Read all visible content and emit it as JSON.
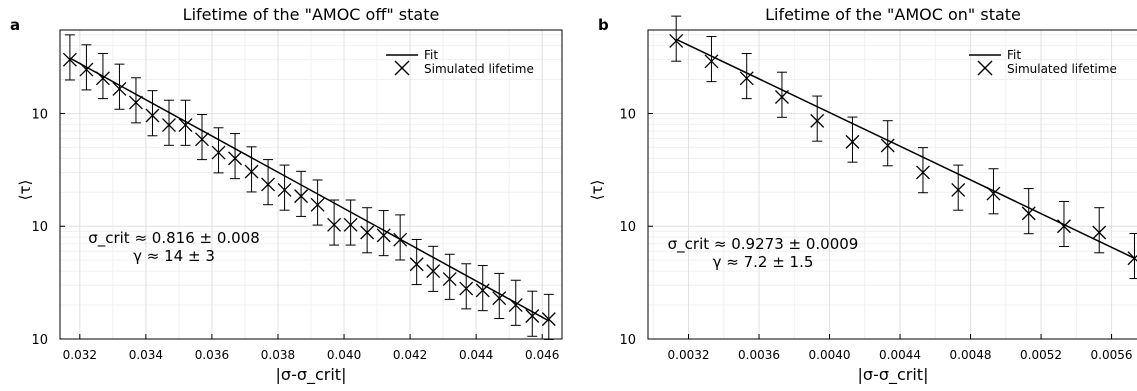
{
  "chart_data": [
    {
      "panel_label": "a",
      "type": "scatter",
      "title": "Lifetime of the \"AMOC off\" state",
      "xlabel": "|σ-σ_crit|",
      "ylabel": "⟨τ⟩",
      "y_scale": "log",
      "xlim": [
        0.0314,
        0.0466
      ],
      "ylim": [
        10,
        5500
      ],
      "x_ticks": [
        0.032,
        0.034,
        0.036,
        0.038,
        0.04,
        0.042,
        0.044,
        0.046
      ],
      "x_tick_labels": [
        "0.032",
        "0.034",
        "0.036",
        "0.038",
        "0.040",
        "0.042",
        "0.044",
        "0.046"
      ],
      "y_ticks": [
        10,
        100,
        1000
      ],
      "y_tick_labels": [
        [
          "10",
          "1"
        ],
        [
          "10",
          "2"
        ],
        [
          "10",
          "3"
        ]
      ],
      "grid": true,
      "legend": {
        "position": "top-right",
        "entries": [
          "Fit",
          "Simulated lifetime"
        ]
      },
      "annotation": [
        "σ_crit ≈ 0.816 ± 0.008",
        "γ ≈ 14 ± 3"
      ],
      "fit": {
        "x": [
          0.0317,
          0.0462
        ],
        "y": [
          3100,
          14.5
        ]
      },
      "series": [
        {
          "name": "Simulated lifetime",
          "x": [
            0.0317,
            0.0322,
            0.0327,
            0.0332,
            0.0337,
            0.0342,
            0.0347,
            0.0352,
            0.0357,
            0.0362,
            0.0367,
            0.0372,
            0.0377,
            0.0382,
            0.0387,
            0.0392,
            0.0397,
            0.0402,
            0.0407,
            0.0412,
            0.0417,
            0.0422,
            0.0427,
            0.0432,
            0.0437,
            0.0442,
            0.0447,
            0.0452,
            0.0457,
            0.0462
          ],
          "y": [
            3000,
            2450,
            2050,
            1650,
            1250,
            960,
            790,
            790,
            590,
            450,
            400,
            305,
            235,
            210,
            185,
            155,
            103,
            103,
            88,
            83,
            76,
            46,
            40,
            34,
            28,
            27,
            23,
            20,
            16,
            15
          ],
          "err_low": [
            0.18,
            0.18,
            0.18,
            0.18,
            0.18,
            0.18,
            0.18,
            0.18,
            0.18,
            0.18,
            0.18,
            0.18,
            0.18,
            0.18,
            0.18,
            0.18,
            0.18,
            0.18,
            0.18,
            0.18,
            0.18,
            0.18,
            0.18,
            0.18,
            0.18,
            0.18,
            0.18,
            0.18,
            0.18,
            0.18
          ],
          "err_high": [
            0.22,
            0.22,
            0.22,
            0.22,
            0.22,
            0.22,
            0.22,
            0.22,
            0.22,
            0.22,
            0.22,
            0.22,
            0.22,
            0.22,
            0.22,
            0.22,
            0.22,
            0.22,
            0.22,
            0.22,
            0.22,
            0.22,
            0.22,
            0.22,
            0.22,
            0.22,
            0.22,
            0.22,
            0.22,
            0.22
          ]
        }
      ]
    },
    {
      "panel_label": "b",
      "type": "scatter",
      "title": "Lifetime of the \"AMOC on\" state",
      "xlabel": "|σ-σ_crit|",
      "ylabel": "⟨τ⟩",
      "y_scale": "log",
      "xlim": [
        0.00297,
        0.00575
      ],
      "ylim": [
        10,
        5500
      ],
      "x_ticks": [
        0.0032,
        0.0036,
        0.004,
        0.0044,
        0.0048,
        0.0052,
        0.0056
      ],
      "x_tick_labels": [
        "0.0032",
        "0.0036",
        "0.0040",
        "0.0044",
        "0.0048",
        "0.0052",
        "0.0056"
      ],
      "y_ticks": [
        10,
        100,
        1000
      ],
      "y_tick_labels": [
        [
          "10",
          "1"
        ],
        [
          "10",
          "2"
        ],
        [
          "10",
          "3"
        ]
      ],
      "grid": true,
      "legend": {
        "position": "top-right",
        "entries": [
          "Fit",
          "Simulated lifetime"
        ]
      },
      "annotation": [
        "σ_crit ≈ 0.9273 ± 0.0009",
        "γ ≈ 7.2 ± 1.5"
      ],
      "fit": {
        "x": [
          0.00313,
          0.00573
        ],
        "y": [
          4550,
          52
        ]
      },
      "series": [
        {
          "name": "Simulated lifetime",
          "x": [
            0.00313,
            0.00333,
            0.00353,
            0.00373,
            0.00393,
            0.00413,
            0.00433,
            0.00453,
            0.00473,
            0.00493,
            0.00513,
            0.00533,
            0.00553,
            0.00573
          ],
          "y": [
            4400,
            2900,
            2050,
            1400,
            860,
            560,
            520,
            300,
            210,
            195,
            130,
            100,
            88,
            52
          ],
          "err_low": [
            0.18,
            0.18,
            0.18,
            0.18,
            0.18,
            0.18,
            0.18,
            0.18,
            0.18,
            0.18,
            0.18,
            0.18,
            0.18,
            0.18
          ],
          "err_high": [
            0.22,
            0.22,
            0.22,
            0.22,
            0.22,
            0.22,
            0.22,
            0.22,
            0.22,
            0.22,
            0.22,
            0.22,
            0.22,
            0.22
          ]
        }
      ]
    }
  ]
}
